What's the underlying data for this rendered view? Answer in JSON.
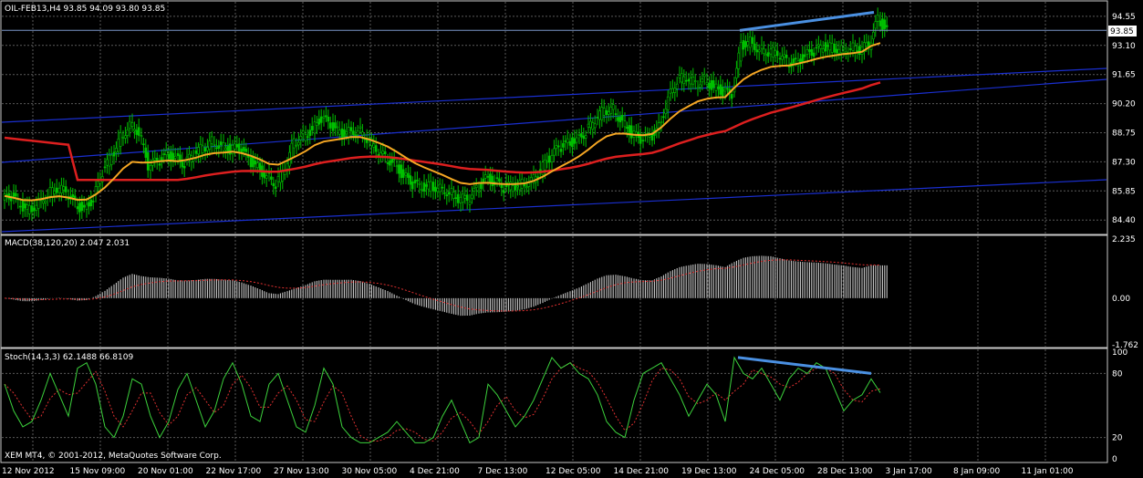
{
  "colors": {
    "background": "#000000",
    "candle": "#00c000",
    "ma_fast": "#f5a623",
    "ma_slow": "#dd1f1f",
    "channel": "#1a2fd0",
    "divergence": "#4a90e2",
    "macd_hist": "#d8d8d8",
    "macd_signal": "#e03030",
    "stoch_main": "#3cd23c",
    "stoch_signal": "#e03030",
    "price_line": "#7a96c8"
  },
  "chart_data": [
    {
      "type": "candlestick",
      "title": "OIL-FEB13,H4  93.85 94.09 93.80 93.85",
      "ylim": [
        84.0,
        95.0
      ],
      "yticks": [
        94.55,
        93.1,
        91.65,
        90.2,
        88.75,
        87.3,
        85.85,
        84.4
      ],
      "ytick_labels": [
        "94.55",
        "93.10",
        "91.65",
        "90.20",
        "88.75",
        "87.30",
        "85.85",
        "84.40"
      ],
      "current_price": 93.85,
      "current_price_label": "93.85",
      "x": [
        0,
        10,
        20,
        30,
        40,
        50,
        60,
        70,
        80,
        90,
        100,
        110,
        120,
        130,
        140,
        150,
        160,
        170,
        180,
        190,
        200,
        210,
        220,
        230,
        240,
        250,
        260,
        270,
        280,
        290,
        300,
        310,
        320,
        330,
        340,
        350,
        360,
        370,
        380,
        390,
        400,
        410,
        420,
        430,
        440,
        450,
        460,
        470,
        480,
        490,
        500,
        510,
        520,
        530,
        540,
        550,
        560,
        570,
        580,
        590,
        600,
        610,
        620,
        630,
        640,
        650,
        660,
        670,
        680,
        690,
        700,
        710,
        720,
        730,
        740,
        750,
        760,
        770,
        780,
        790,
        800,
        810,
        820,
        830,
        840,
        850,
        860,
        870,
        880,
        890,
        900,
        910,
        920,
        930,
        940,
        950,
        960
      ],
      "close": [
        85.6,
        85.1,
        84.9,
        85.3,
        85.7,
        86.0,
        85.8,
        85.2,
        84.9,
        85.5,
        86.8,
        87.6,
        88.5,
        89.2,
        88.8,
        87.1,
        87.3,
        87.6,
        87.5,
        87.2,
        87.7,
        88.0,
        88.3,
        88.1,
        87.9,
        88.0,
        87.4,
        87.0,
        86.6,
        86.2,
        87.0,
        88.3,
        88.6,
        88.9,
        89.5,
        89.1,
        88.7,
        88.8,
        88.9,
        88.5,
        87.9,
        87.5,
        87.2,
        86.6,
        86.2,
        86.0,
        86.1,
        86.0,
        85.8,
        85.5,
        85.4,
        85.9,
        86.5,
        86.3,
        86.0,
        86.1,
        86.2,
        86.4,
        86.9,
        87.5,
        88.0,
        88.2,
        88.4,
        88.8,
        89.4,
        89.9,
        89.9,
        89.3,
        88.7,
        88.4,
        88.5,
        89.0,
        90.5,
        91.4,
        91.5,
        91.2,
        91.4,
        91.0,
        90.8,
        90.6,
        93.1,
        93.3,
        92.9,
        92.8,
        92.7,
        92.3,
        92.2,
        92.6,
        92.8,
        93.0,
        93.0,
        92.9,
        93.0,
        92.9,
        93.1,
        94.4,
        93.85
      ]
    },
    {
      "type": "bar",
      "title": "MACD(38,120,20) 2.047 2.031",
      "ylim": [
        -1.762,
        2.235
      ],
      "ytick_labels": [
        "2.235",
        "0.00",
        "-1.762"
      ],
      "yticks": [
        2.235,
        0.0,
        -1.762
      ]
    },
    {
      "type": "line",
      "title": "Stoch(14,3,3) 62.1488 66.8109",
      "ylim": [
        0,
        100
      ],
      "yticks": [
        100,
        80,
        20,
        0
      ],
      "ytick_labels": [
        "100",
        "80",
        "20",
        "0"
      ],
      "main": [
        70,
        45,
        30,
        35,
        55,
        80,
        60,
        40,
        85,
        90,
        70,
        30,
        20,
        40,
        75,
        70,
        40,
        20,
        35,
        65,
        80,
        55,
        30,
        45,
        75,
        90,
        70,
        40,
        35,
        70,
        80,
        55,
        30,
        25,
        50,
        85,
        70,
        30,
        20,
        15,
        15,
        20,
        25,
        35,
        25,
        15,
        15,
        20,
        40,
        55,
        35,
        15,
        20,
        70,
        60,
        45,
        30,
        40,
        55,
        75,
        95,
        85,
        90,
        80,
        75,
        60,
        35,
        25,
        20,
        55,
        80,
        85,
        90,
        75,
        60,
        40,
        55,
        70,
        60,
        35,
        95,
        80,
        75,
        85,
        70,
        55,
        75,
        85,
        80,
        90,
        85,
        65,
        45,
        55,
        60,
        75,
        62
      ]
    }
  ],
  "x_labels": [
    "12 Nov 2012",
    "15 Nov 09:00",
    "20 Nov 01:00",
    "22 Nov 17:00",
    "27 Nov 13:00",
    "30 Nov 05:00",
    "4 Dec 21:00",
    "7 Dec 13:00",
    "12 Dec 05:00",
    "14 Dec 21:00",
    "19 Dec 13:00",
    "24 Dec 05:00",
    "28 Dec 13:00",
    "3 Jan 17:00",
    "8 Jan 09:00",
    "11 Jan 01:00"
  ],
  "copyright": "XEM MT4, © 2001-2012, MetaQuotes Software Corp."
}
